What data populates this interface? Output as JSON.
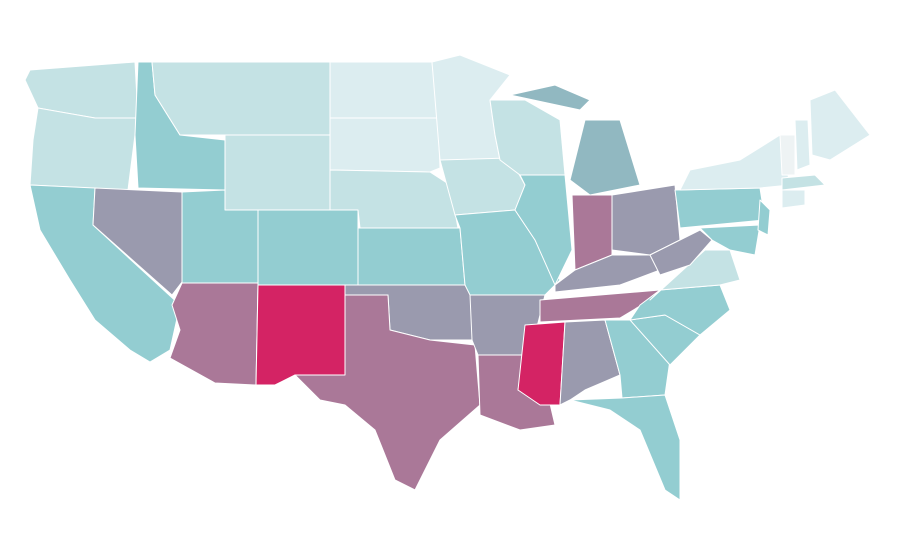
{
  "map": {
    "regions": [
      {
        "color": "#c4e2e4"
      },
      {
        "color": "#c4e2e4"
      },
      {
        "color": "#93cdd1"
      },
      {
        "color": "#9a9aae"
      },
      {
        "color": "#93cdd1"
      },
      {
        "color": "#c4e2e4"
      },
      {
        "color": "#c4e2e4"
      },
      {
        "color": "#93cdd1"
      },
      {
        "color": "#aa7898"
      },
      {
        "color": "#93cdd1"
      },
      {
        "color": "#d42364"
      },
      {
        "color": "#dcedf0"
      },
      {
        "color": "#dcedf0"
      },
      {
        "color": "#c4e2e4"
      },
      {
        "color": "#93cdd1"
      },
      {
        "color": "#9a9aae"
      },
      {
        "color": "#aa7898"
      },
      {
        "color": "#dcedf0"
      },
      {
        "color": "#c4e2e4"
      },
      {
        "color": "#93cdd1"
      },
      {
        "color": "#9a9aae"
      },
      {
        "color": "#aa7898"
      },
      {
        "color": "#c4e2e4"
      },
      {
        "color": "#93cdd1"
      },
      {
        "color": "#91b8c1"
      },
      {
        "color": "#aa7898"
      },
      {
        "color": "#9a9aae"
      },
      {
        "color": "#9a9aae"
      },
      {
        "color": "#aa7898"
      },
      {
        "color": "#d42364"
      },
      {
        "color": "#9a9aae"
      },
      {
        "color": "#93cdd1"
      },
      {
        "color": "#93cdd1"
      },
      {
        "color": "#93cdd1"
      },
      {
        "color": "#93cdd1"
      },
      {
        "color": "#c4e2e4"
      },
      {
        "color": "#9a9aae"
      },
      {
        "color": "#93cdd1"
      },
      {
        "color": "#dcedf0"
      },
      {
        "color": "#93cdd1"
      },
      {
        "color": "#93cdd1"
      },
      {
        "color": "#eef3f4"
      },
      {
        "color": "#dcedf0"
      },
      {
        "color": "#dcedf0"
      },
      {
        "color": "#c4e2e4"
      },
      {
        "color": "#dcedf0"
      }
    ]
  }
}
